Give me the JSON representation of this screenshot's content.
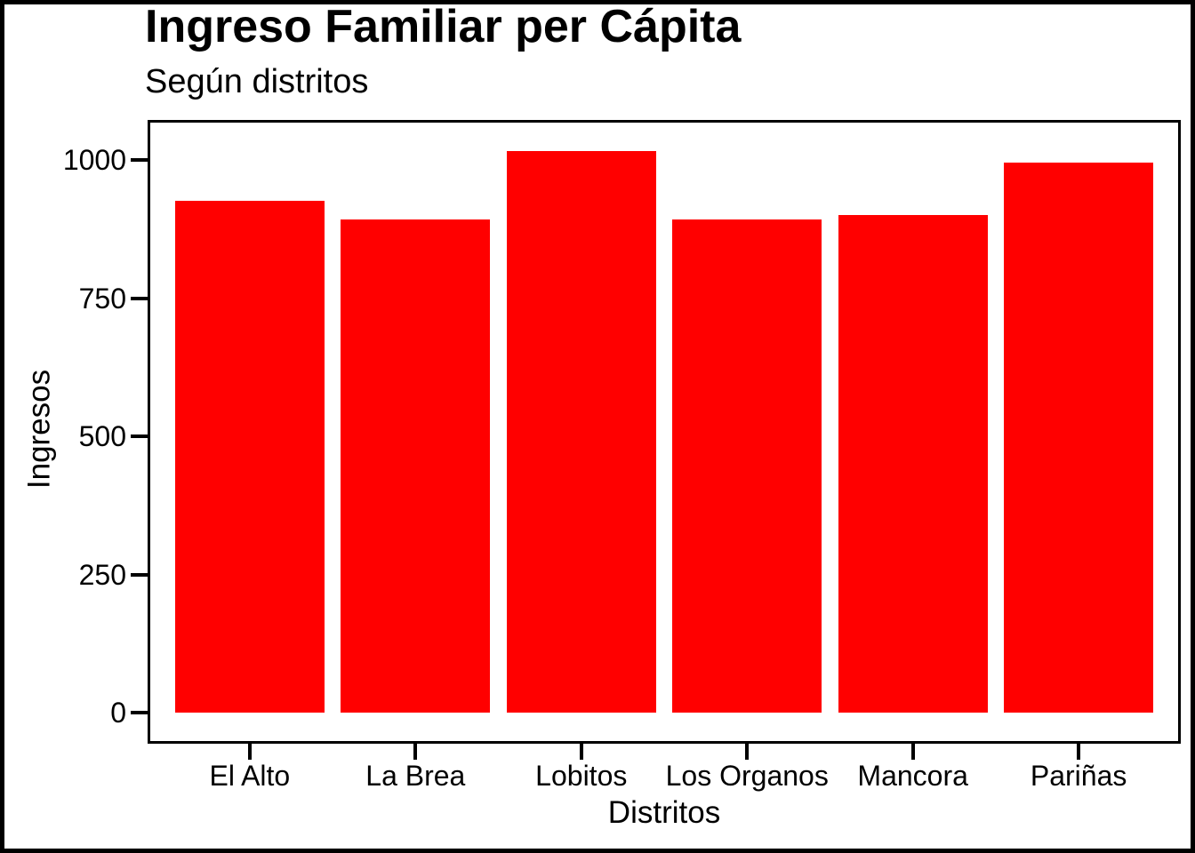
{
  "chart_data": {
    "type": "bar",
    "title": "Ingreso Familiar per Cápita",
    "subtitle": "Según distritos",
    "xlabel": "Distritos",
    "ylabel": "Ingresos",
    "categories": [
      "El Alto",
      "La Brea",
      "Lobitos",
      "Los Organos",
      "Mancora",
      "Pariñas"
    ],
    "values": [
      926,
      893,
      1017,
      892,
      901,
      996
    ],
    "yticks": [
      0,
      250,
      500,
      750,
      1000
    ],
    "ylim": [
      -50.85,
      1067.85
    ],
    "bar_color": "#FF0000",
    "text_color": "#000000",
    "panel_border_color": "#000000",
    "background": "#FFFFFF",
    "grid": false,
    "legend": "none",
    "bar_width_fraction": 0.9
  }
}
